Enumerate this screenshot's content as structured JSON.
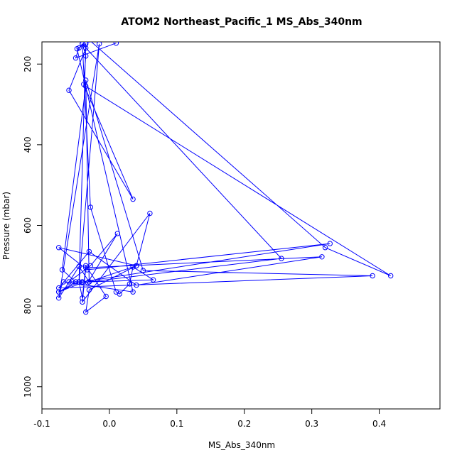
{
  "chart_data": {
    "type": "line",
    "title": "ATOM2 Northeast_Pacific_1 MS_Abs_340nm",
    "xlabel": "MS_Abs_340nm",
    "ylabel": "Pressure (mbar)",
    "xlim": [
      -0.1,
      0.49
    ],
    "ylim": [
      1055,
      145
    ],
    "y_inverted": true,
    "grid": false,
    "marker": "open-circle",
    "x_ticks": [
      -0.1,
      0.0,
      0.1,
      0.2,
      0.3,
      0.4
    ],
    "x_tick_labels": [
      "-0.1",
      "0.0",
      "0.1",
      "0.2",
      "0.3",
      "0.4"
    ],
    "y_ticks": [
      200,
      400,
      600,
      800,
      1000
    ],
    "y_tick_labels": [
      "200",
      "400",
      "600",
      "800",
      "1000"
    ],
    "series": [
      {
        "color": "#0000ff",
        "x": [
          0.01,
          -0.05,
          -0.045,
          -0.04,
          -0.035,
          -0.038,
          0.035,
          -0.06,
          -0.03,
          0.32,
          0.417,
          -0.035,
          -0.07,
          -0.05,
          -0.075,
          -0.04,
          0.255,
          -0.035,
          -0.04,
          -0.028,
          0.01,
          0.015,
          0.03,
          0.035,
          0.065,
          -0.03,
          -0.035,
          0.05,
          0.39,
          -0.075,
          -0.03,
          0.04,
          0.315,
          -0.035,
          -0.04,
          0.06,
          0.04,
          -0.03,
          -0.045,
          -0.075,
          -0.015,
          -0.045,
          -0.035,
          -0.048,
          0.035,
          -0.068,
          -0.075,
          -0.045,
          -0.04,
          -0.035,
          -0.005,
          -0.035,
          -0.03,
          0.04,
          -0.075,
          -0.033,
          0.327,
          -0.04,
          -0.06,
          -0.028,
          0.012,
          -0.032
        ],
        "y": [
          148,
          185,
          160,
          150,
          180,
          250,
          535,
          265,
          140,
          655,
          725,
          255,
          710,
          740,
          765,
          742,
          682,
          160,
          150,
          555,
          765,
          770,
          745,
          703,
          735,
          740,
          240,
          712,
          725,
          755,
          665,
          748,
          678,
          705,
          790,
          570,
          700,
          740,
          702,
          780,
          150,
          740,
          150,
          162,
          765,
          740,
          765,
          740,
          780,
          700,
          776,
          815,
          760,
          700,
          655,
          710,
          645,
          740,
          740,
          700,
          620,
          742
        ]
      }
    ]
  }
}
